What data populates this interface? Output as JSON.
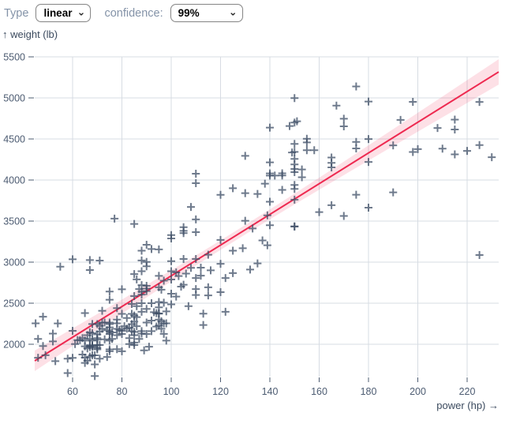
{
  "controls": {
    "type_label": "Type",
    "type_value": "linear",
    "confidence_label": "confidence:",
    "confidence_value": "99%"
  },
  "chart_data": {
    "type": "scatter",
    "xlabel": "power (hp) →",
    "ylabel": "↑ weight (lb)",
    "x_ticks": [
      60,
      80,
      100,
      120,
      140,
      160,
      180,
      200,
      220
    ],
    "y_ticks": [
      2000,
      2500,
      3000,
      3500,
      4000,
      4500,
      5000,
      5500
    ],
    "xlim": [
      44.6,
      232.8
    ],
    "ylim": [
      1560,
      5500
    ],
    "grid": true,
    "marker": "plus",
    "regression": {
      "model": "linear",
      "slope_lb_per_hp": 18.7,
      "intercept_lb": 990,
      "confidence_level": "99%"
    },
    "colors": {
      "point": "#3e4e66",
      "regression_line": "#ee2950",
      "confidence_band": "#f2264e",
      "band_opacity": 0.14,
      "grid": "#d7dce3",
      "tick_text": "#4d5c72",
      "axis_title": "#3b4a5e"
    },
    "points": [
      [
        45,
        2255
      ],
      [
        46,
        1835
      ],
      [
        46,
        2065
      ],
      [
        48,
        1978
      ],
      [
        48,
        2335
      ],
      [
        49,
        1867
      ],
      [
        52,
        2035
      ],
      [
        52,
        2130
      ],
      [
        53,
        1795
      ],
      [
        54,
        2254
      ],
      [
        55,
        2945
      ],
      [
        58,
        1649
      ],
      [
        58,
        1825
      ],
      [
        60,
        1834
      ],
      [
        60,
        2164
      ],
      [
        60,
        3035
      ],
      [
        61,
        2003
      ],
      [
        62,
        2050
      ],
      [
        63,
        2051
      ],
      [
        64,
        1875
      ],
      [
        64,
        2075
      ],
      [
        65,
        1773
      ],
      [
        65,
        1836
      ],
      [
        65,
        1975
      ],
      [
        65,
        2045
      ],
      [
        65,
        2380
      ],
      [
        66,
        1800
      ],
      [
        66,
        1950
      ],
      [
        66,
        2110
      ],
      [
        67,
        1850
      ],
      [
        67,
        1965
      ],
      [
        67,
        1985
      ],
      [
        67,
        2065
      ],
      [
        67,
        2145
      ],
      [
        67,
        2904
      ],
      [
        67,
        3025
      ],
      [
        68,
        1867
      ],
      [
        68,
        1970
      ],
      [
        68,
        1985
      ],
      [
        68,
        2045
      ],
      [
        68,
        2135
      ],
      [
        68,
        2246
      ],
      [
        69,
        1613
      ],
      [
        69,
        1755
      ],
      [
        69,
        1865
      ],
      [
        70,
        1937
      ],
      [
        70,
        1955
      ],
      [
        70,
        1990
      ],
      [
        70,
        2055
      ],
      [
        70,
        2074
      ],
      [
        70,
        2120
      ],
      [
        70,
        2245
      ],
      [
        71,
        1825
      ],
      [
        71,
        1990
      ],
      [
        71,
        2155
      ],
      [
        71,
        2223
      ],
      [
        71,
        3019
      ],
      [
        72,
        2189
      ],
      [
        72,
        2265
      ],
      [
        72,
        2408
      ],
      [
        73,
        2060
      ],
      [
        73,
        2265
      ],
      [
        74,
        1845
      ],
      [
        74,
        2171
      ],
      [
        75,
        1915
      ],
      [
        75,
        1937
      ],
      [
        75,
        2045
      ],
      [
        75,
        2125
      ],
      [
        75,
        2155
      ],
      [
        75,
        2205
      ],
      [
        75,
        2245
      ],
      [
        75,
        2265
      ],
      [
        75,
        2542
      ],
      [
        75,
        2642
      ],
      [
        76,
        2065
      ],
      [
        76,
        2144
      ],
      [
        77,
        3530
      ],
      [
        78,
        1940
      ],
      [
        78,
        2110
      ],
      [
        78,
        2188
      ],
      [
        78,
        2255
      ],
      [
        78,
        2300
      ],
      [
        78,
        2440
      ],
      [
        79,
        2175
      ],
      [
        80,
        1915
      ],
      [
        80,
        2125
      ],
      [
        80,
        2164
      ],
      [
        80,
        2370
      ],
      [
        80,
        2670
      ],
      [
        81,
        2220
      ],
      [
        82,
        2190
      ],
      [
        82,
        2320
      ],
      [
        83,
        2003
      ],
      [
        83,
        2075
      ],
      [
        83,
        2202
      ],
      [
        84,
        2160
      ],
      [
        84,
        2245
      ],
      [
        84,
        2370
      ],
      [
        84,
        2490
      ],
      [
        85,
        1990
      ],
      [
        85,
        2020
      ],
      [
        85,
        2110
      ],
      [
        85,
        2150
      ],
      [
        85,
        2275
      ],
      [
        85,
        2350
      ],
      [
        85,
        2587
      ],
      [
        85,
        2855
      ],
      [
        85,
        3465
      ],
      [
        86,
        2220
      ],
      [
        86,
        2330
      ],
      [
        86,
        2464
      ],
      [
        86,
        2790
      ],
      [
        87,
        2065
      ],
      [
        87,
        2672
      ],
      [
        88,
        2130
      ],
      [
        88,
        2160
      ],
      [
        88,
        2395
      ],
      [
        88,
        2500
      ],
      [
        88,
        2605
      ],
      [
        88,
        2640
      ],
      [
        88,
        2720
      ],
      [
        88,
        2890
      ],
      [
        88,
        3021
      ],
      [
        88,
        3139
      ],
      [
        89,
        1925
      ],
      [
        90,
        2125
      ],
      [
        90,
        2264
      ],
      [
        90,
        2430
      ],
      [
        90,
        2648
      ],
      [
        90,
        2678
      ],
      [
        90,
        2711
      ],
      [
        90,
        2950
      ],
      [
        90,
        3003
      ],
      [
        90,
        3211
      ],
      [
        91,
        1970
      ],
      [
        92,
        2160
      ],
      [
        92,
        2288
      ],
      [
        92,
        2500
      ],
      [
        92,
        3160
      ],
      [
        93,
        2391
      ],
      [
        94,
        2215
      ],
      [
        94,
        2379
      ],
      [
        95,
        2228
      ],
      [
        95,
        2300
      ],
      [
        95,
        2372
      ],
      [
        95,
        2375
      ],
      [
        95,
        2450
      ],
      [
        95,
        2515
      ],
      [
        95,
        2694
      ],
      [
        95,
        2833
      ],
      [
        95,
        3155
      ],
      [
        96,
        2189
      ],
      [
        96,
        2280
      ],
      [
        96,
        2665
      ],
      [
        97,
        2126
      ],
      [
        97,
        2254
      ],
      [
        97,
        2506
      ],
      [
        97,
        2774
      ],
      [
        98,
        2045
      ],
      [
        98,
        2255
      ],
      [
        98,
        2400
      ],
      [
        100,
        2485
      ],
      [
        100,
        2615
      ],
      [
        100,
        2789
      ],
      [
        100,
        2890
      ],
      [
        100,
        3012
      ],
      [
        100,
        3288
      ],
      [
        100,
        3329
      ],
      [
        102,
        2580
      ],
      [
        102,
        2875
      ],
      [
        103,
        2830
      ],
      [
        104,
        2702
      ],
      [
        105,
        2725
      ],
      [
        105,
        3039
      ],
      [
        105,
        3353
      ],
      [
        105,
        3381
      ],
      [
        105,
        3425
      ],
      [
        106,
        2860
      ],
      [
        107,
        2464
      ],
      [
        108,
        2930
      ],
      [
        108,
        3672
      ],
      [
        110,
        2600
      ],
      [
        110,
        2672
      ],
      [
        110,
        2807
      ],
      [
        110,
        3039
      ],
      [
        110,
        3365
      ],
      [
        110,
        3520
      ],
      [
        110,
        3962
      ],
      [
        110,
        4077
      ],
      [
        112,
        2835
      ],
      [
        112,
        2933
      ],
      [
        113,
        2234
      ],
      [
        113,
        2372
      ],
      [
        115,
        2595
      ],
      [
        115,
        2694
      ],
      [
        115,
        3090
      ],
      [
        116,
        2900
      ],
      [
        120,
        2635
      ],
      [
        120,
        2979
      ],
      [
        120,
        3270
      ],
      [
        120,
        3820
      ],
      [
        122,
        2395
      ],
      [
        122,
        2807
      ],
      [
        125,
        2867
      ],
      [
        125,
        3140
      ],
      [
        125,
        3900
      ],
      [
        129,
        3169
      ],
      [
        130,
        3504
      ],
      [
        130,
        3840
      ],
      [
        130,
        4295
      ],
      [
        132,
        2910
      ],
      [
        133,
        3410
      ],
      [
        135,
        2984
      ],
      [
        135,
        3830
      ],
      [
        137,
        3265
      ],
      [
        138,
        3955
      ],
      [
        139,
        3205
      ],
      [
        139,
        3570
      ],
      [
        140,
        3449
      ],
      [
        140,
        3735
      ],
      [
        140,
        4054
      ],
      [
        140,
        4080
      ],
      [
        140,
        4215
      ],
      [
        140,
        4638
      ],
      [
        142,
        4054
      ],
      [
        145,
        3880
      ],
      [
        145,
        4055
      ],
      [
        145,
        4082
      ],
      [
        148,
        4657
      ],
      [
        149,
        4335
      ],
      [
        150,
        3433
      ],
      [
        150,
        3436
      ],
      [
        150,
        3761
      ],
      [
        150,
        3892
      ],
      [
        150,
        3940
      ],
      [
        150,
        4096
      ],
      [
        150,
        4135
      ],
      [
        150,
        4190
      ],
      [
        150,
        4257
      ],
      [
        150,
        4342
      ],
      [
        150,
        4440
      ],
      [
        150,
        4699
      ],
      [
        150,
        4997
      ],
      [
        151,
        4715
      ],
      [
        153,
        4034
      ],
      [
        153,
        4129
      ],
      [
        155,
        4363
      ],
      [
        155,
        4458
      ],
      [
        155,
        4502
      ],
      [
        158,
        4363
      ],
      [
        160,
        3609
      ],
      [
        165,
        3693
      ],
      [
        165,
        4154
      ],
      [
        165,
        4209
      ],
      [
        165,
        4274
      ],
      [
        167,
        4906
      ],
      [
        170,
        3563
      ],
      [
        170,
        4654
      ],
      [
        170,
        4746
      ],
      [
        175,
        3821
      ],
      [
        175,
        4385
      ],
      [
        175,
        4464
      ],
      [
        175,
        5140
      ],
      [
        180,
        3664
      ],
      [
        180,
        4220
      ],
      [
        180,
        4499
      ],
      [
        180,
        4955
      ],
      [
        190,
        3850
      ],
      [
        190,
        4422
      ],
      [
        193,
        4732
      ],
      [
        198,
        4341
      ],
      [
        198,
        4952
      ],
      [
        200,
        4376
      ],
      [
        208,
        4633
      ],
      [
        210,
        4382
      ],
      [
        215,
        4312
      ],
      [
        215,
        4615
      ],
      [
        215,
        4735
      ],
      [
        220,
        4354
      ],
      [
        225,
        3086
      ],
      [
        225,
        4425
      ],
      [
        225,
        4951
      ],
      [
        230,
        4278
      ]
    ]
  }
}
